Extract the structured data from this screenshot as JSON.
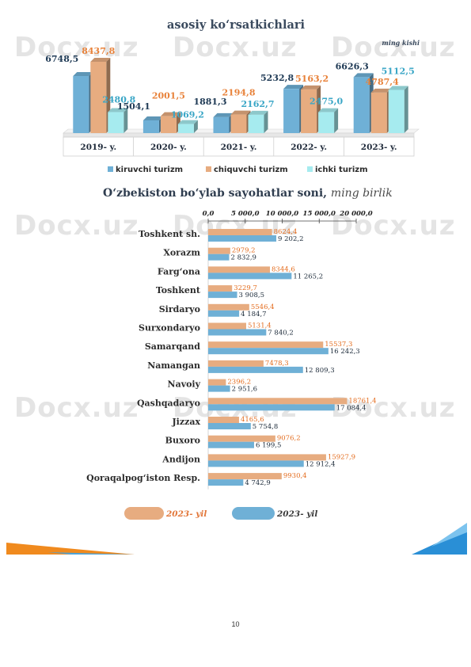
{
  "page_number": "10",
  "colors": {
    "kiruvchi": "#6fb0d6",
    "chiquvchi": "#e7ac80",
    "ichki": "#a6ebef",
    "orange_text": "#e8823a",
    "blue_text": "#2a6f98",
    "dark_text": "#1f3a55"
  },
  "watermark": "Docx.uz",
  "chart_data": [
    {
      "type": "bar",
      "title": "asosiy ko‘rsatkichlari",
      "unit_label": "ming kishi",
      "categories": [
        "2019- y.",
        "2020- y.",
        "2021- y.",
        "2022- y.",
        "2023- y."
      ],
      "series": [
        {
          "name": "kiruvchi turizm",
          "values": [
            6748.5,
            1504.1,
            1881.3,
            5232.8,
            6626.3
          ],
          "labels": [
            "6748,5",
            "1504,1",
            "1881,3",
            "5232,8",
            "6626,3"
          ]
        },
        {
          "name": "chiquvchi turizm",
          "values": [
            8437.8,
            2001.5,
            2194.8,
            5163.2,
            4787.4
          ],
          "labels": [
            "8437,8",
            "2001,5",
            "2194,8",
            "5163,2",
            "4787,4"
          ]
        },
        {
          "name": "ichki turizm",
          "values": [
            2480.8,
            1069.2,
            2162.7,
            2475.0,
            5112.5
          ],
          "labels": [
            "2480,8",
            "1069,2",
            "2162,7",
            "2475,0",
            "5112,5"
          ]
        }
      ],
      "ylim": [
        0,
        9000
      ],
      "legend": "bottom"
    },
    {
      "type": "bar",
      "orientation": "horizontal",
      "title": "O‘zbekiston bo‘ylab sayohatlar soni,",
      "title_unit": "ming birlik",
      "xlim": [
        0,
        20000
      ],
      "xticks": [
        "0,0",
        "5 000,0",
        "10 000,0",
        "15 000,0",
        "20 000,0"
      ],
      "categories": [
        "Toshkent sh.",
        "Xorazm",
        "Farg‘ona",
        "Toshkent",
        "Sirdaryo",
        "Surxondaryo",
        "Samarqand",
        "Namangan",
        "Navoiy",
        "Qashqadaryo",
        "Jizzax",
        "Buxoro",
        "Andijon",
        "Qoraqalpog‘iston  Resp."
      ],
      "series": [
        {
          "name": "2023- yil",
          "color": "orange",
          "values": [
            8624.4,
            2979.2,
            8344.6,
            3229.7,
            5546.4,
            5131.4,
            15537.3,
            7478.3,
            2396.2,
            18761.4,
            4165.6,
            9076.2,
            15927.9,
            9930.4
          ],
          "labels": [
            "8624,4",
            "2979,2",
            "8344,6",
            "3229,7",
            "5546,4",
            "5131,4",
            "15537,3",
            "7478,3",
            "2396,2",
            "18761,4",
            "4165,6",
            "9076,2",
            "15927,9",
            "9930,4"
          ]
        },
        {
          "name": "2023- yil",
          "color": "blue",
          "values": [
            9202.2,
            2832.9,
            11265.2,
            3908.5,
            4184.7,
            7840.2,
            16242.3,
            12809.3,
            2951.6,
            17084.4,
            5754.8,
            6199.5,
            12912.4,
            4742.9
          ],
          "labels": [
            "9 202,2",
            "2 832,9",
            "11 265,2",
            "3 908,5",
            "4 184,7",
            "7 840,2",
            "16 242,3",
            "12 809,3",
            "2 951,6",
            "17 084,4",
            "5 754,8",
            "6 199,5",
            "12 912,4",
            "4 742,9"
          ]
        }
      ],
      "legend": "bottom"
    }
  ]
}
